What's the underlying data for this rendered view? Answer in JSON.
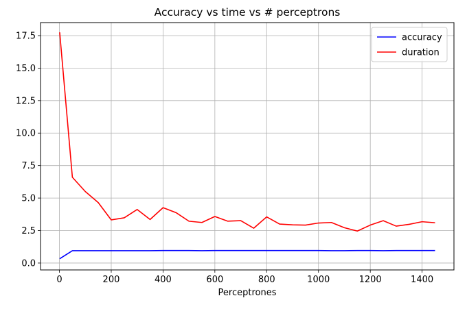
{
  "chart_data": {
    "type": "line",
    "title": "Accuracy vs time vs # perceptrons",
    "xlabel": "Perceptrones",
    "ylabel": "",
    "xlim": [
      -73,
      1523
    ],
    "ylim": [
      -0.53,
      18.5
    ],
    "xticks": [
      0,
      200,
      400,
      600,
      800,
      1000,
      1200,
      1400
    ],
    "yticks": [
      0.0,
      2.5,
      5.0,
      7.5,
      10.0,
      12.5,
      15.0,
      17.5
    ],
    "ytick_labels": [
      "0.0",
      "2.5",
      "5.0",
      "7.5",
      "10.0",
      "12.5",
      "15.0",
      "17.5"
    ],
    "grid": true,
    "legend_position": "top-right",
    "x": [
      1,
      50,
      100,
      150,
      200,
      250,
      300,
      350,
      400,
      450,
      500,
      550,
      600,
      650,
      700,
      750,
      800,
      850,
      900,
      950,
      1000,
      1050,
      1100,
      1150,
      1200,
      1250,
      1300,
      1350,
      1400,
      1450
    ],
    "series": [
      {
        "name": "accuracy",
        "color": "#0000ff",
        "values": [
          0.33,
          0.95,
          0.95,
          0.95,
          0.95,
          0.95,
          0.95,
          0.95,
          0.96,
          0.96,
          0.96,
          0.95,
          0.96,
          0.96,
          0.96,
          0.96,
          0.96,
          0.96,
          0.96,
          0.96,
          0.96,
          0.95,
          0.95,
          0.96,
          0.96,
          0.95,
          0.96,
          0.96,
          0.96,
          0.96
        ]
      },
      {
        "name": "duration",
        "color": "#ff0000",
        "values": [
          17.75,
          6.6,
          5.5,
          4.65,
          3.32,
          3.48,
          4.12,
          3.35,
          4.26,
          3.88,
          3.22,
          3.12,
          3.58,
          3.22,
          3.26,
          2.68,
          3.55,
          3.0,
          2.94,
          2.92,
          3.08,
          3.12,
          2.72,
          2.46,
          2.92,
          3.26,
          2.84,
          2.98,
          3.18,
          3.1
        ]
      }
    ]
  }
}
